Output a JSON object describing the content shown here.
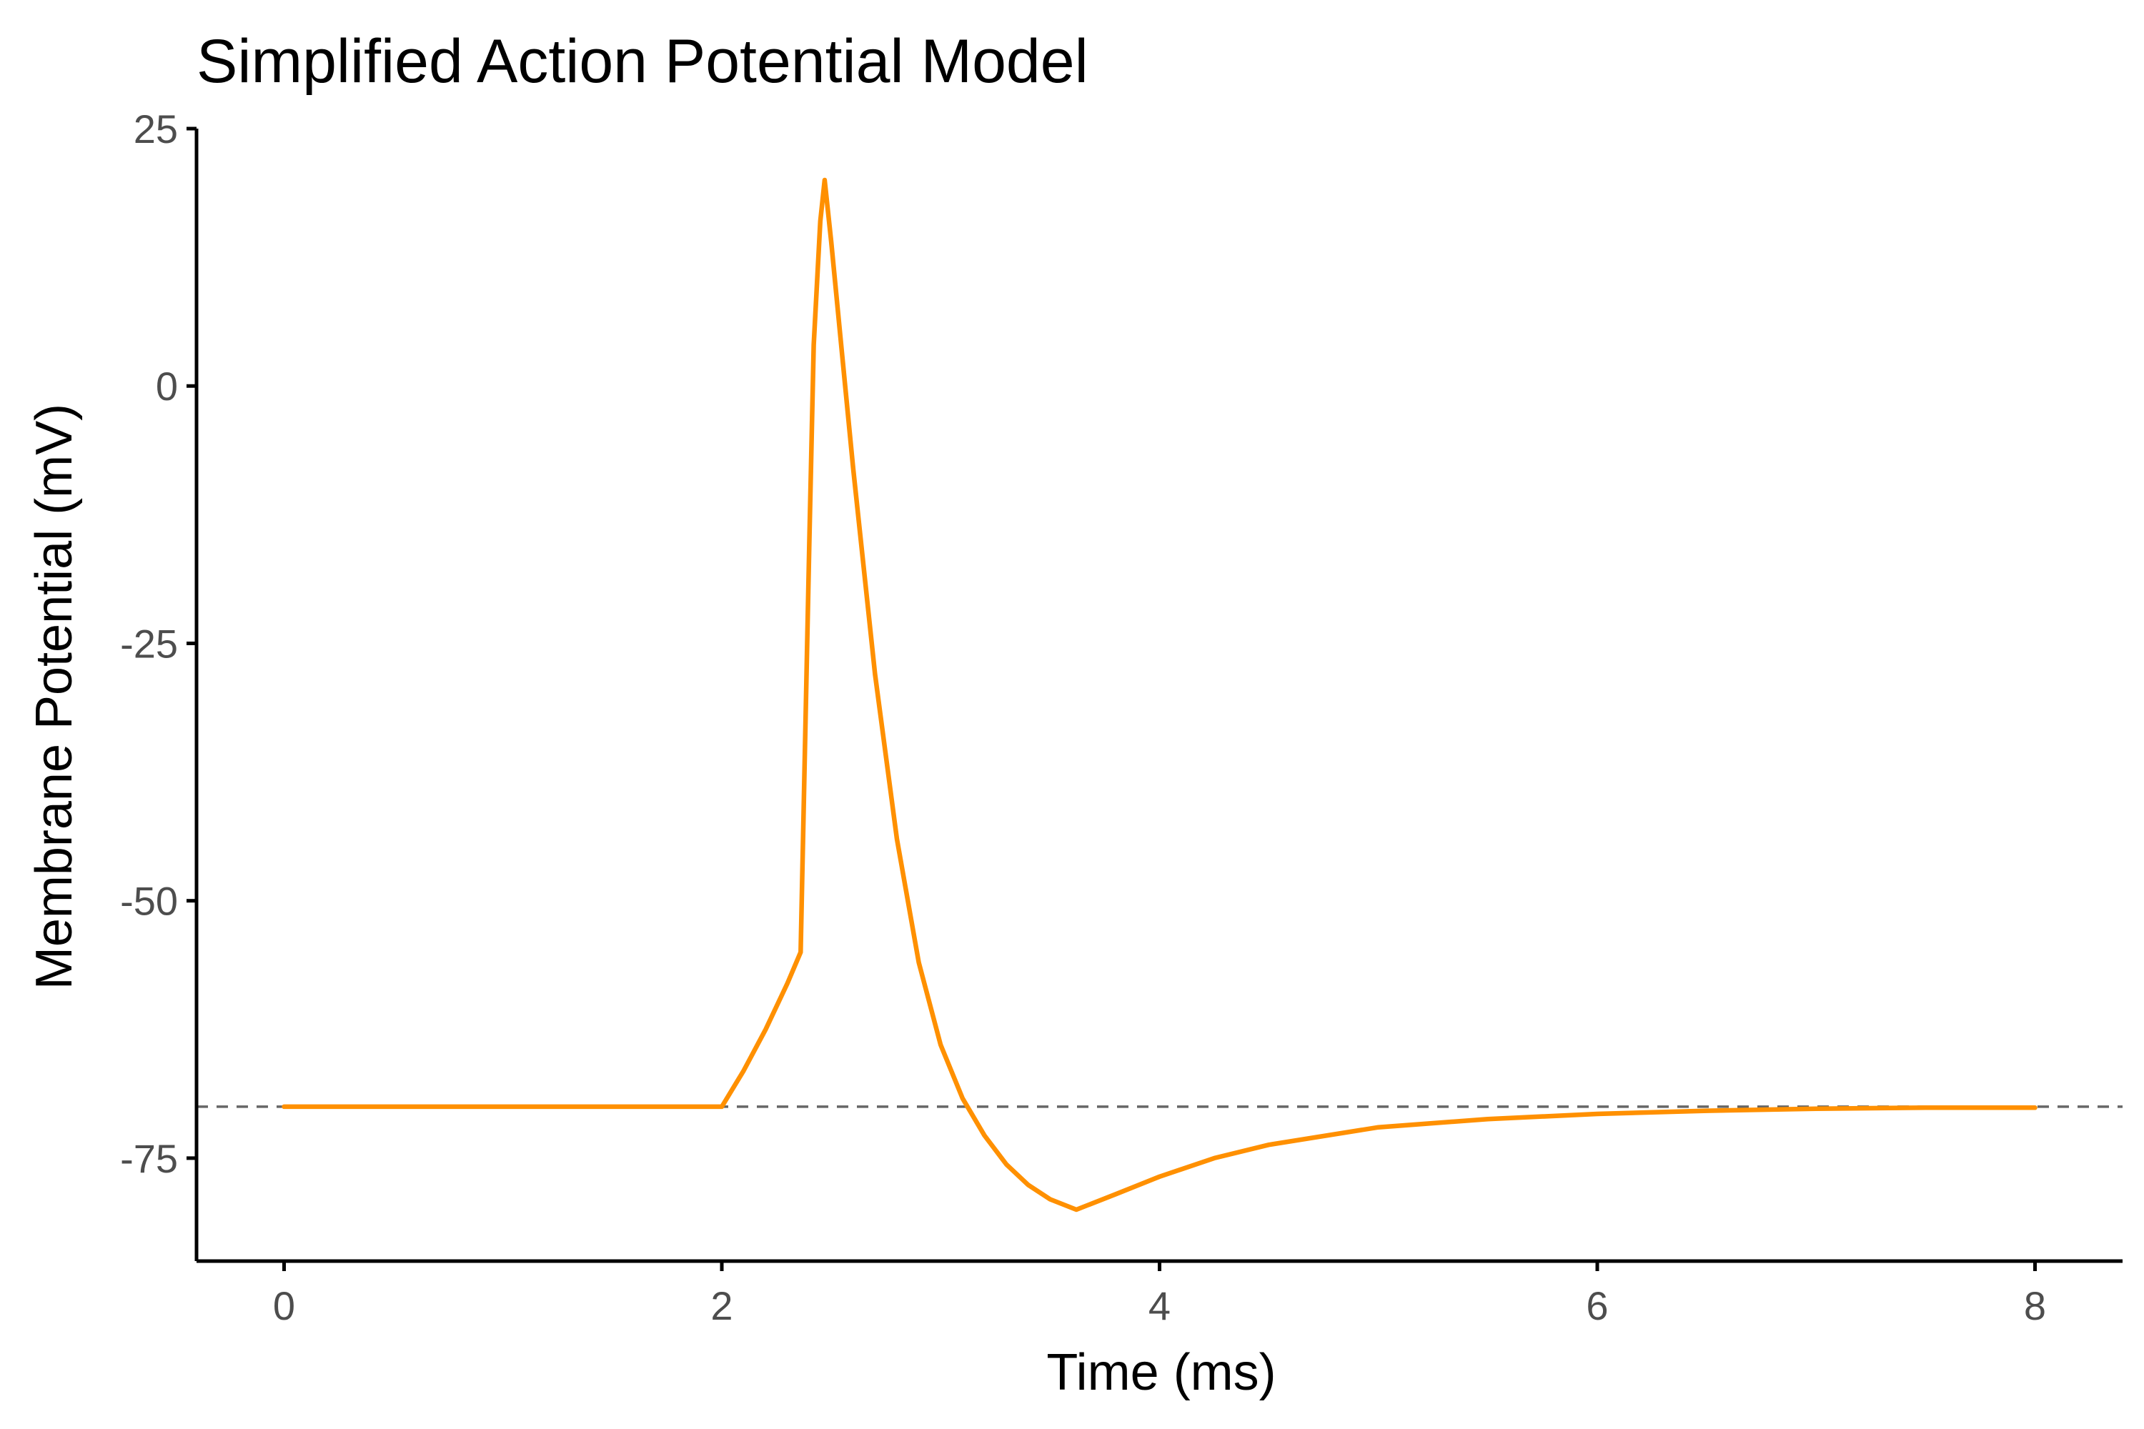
{
  "chart_data": {
    "type": "line",
    "title": "Simplified Action Potential Model",
    "xlabel": "Time (ms)",
    "ylabel": "Membrane Potential (mV)",
    "xlim": [
      -0.4,
      8.4
    ],
    "ylim": [
      -85,
      25
    ],
    "xticks": [
      0,
      2,
      4,
      6,
      8
    ],
    "yticks": [
      25,
      0,
      -25,
      -50,
      -75
    ],
    "grid": false,
    "legend": "none",
    "reference_lines": [
      {
        "axis": "y",
        "value": -70,
        "style": "dashed",
        "color": "#666666"
      }
    ],
    "series": [
      {
        "color": "#FF9000",
        "x": [
          0,
          1,
          2,
          2.1,
          2.2,
          2.3,
          2.36,
          2.38,
          2.4,
          2.42,
          2.45,
          2.47,
          2.5,
          2.55,
          2.6,
          2.7,
          2.8,
          2.9,
          3.0,
          3.1,
          3.2,
          3.3,
          3.4,
          3.5,
          3.62,
          3.8,
          4.0,
          4.25,
          4.5,
          5.0,
          5.5,
          6.0,
          6.5,
          7.0,
          7.5,
          8.0
        ],
        "y": [
          -70,
          -70,
          -70,
          -66.5,
          -62.5,
          -58,
          -55,
          -35,
          -15,
          4,
          16,
          20,
          14,
          3,
          -8,
          -28,
          -44,
          -56,
          -64,
          -69.2,
          -72.8,
          -75.6,
          -77.6,
          -79,
          -80,
          -78.5,
          -76.8,
          -75,
          -73.7,
          -72,
          -71.2,
          -70.7,
          -70.4,
          -70.2,
          -70.1,
          -70.1
        ]
      }
    ]
  }
}
